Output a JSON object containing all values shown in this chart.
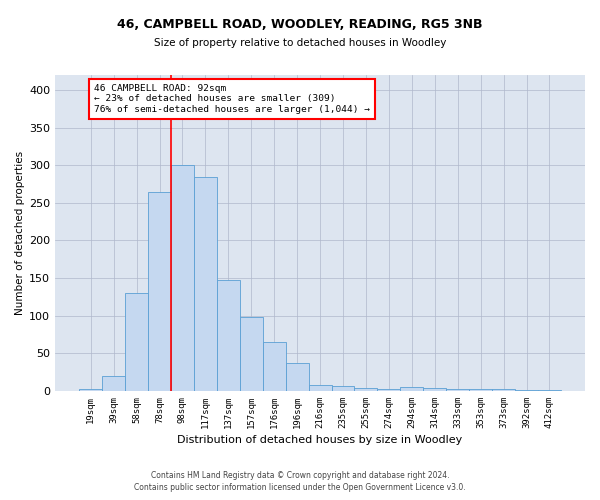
{
  "title1": "46, CAMPBELL ROAD, WOODLEY, READING, RG5 3NB",
  "title2": "Size of property relative to detached houses in Woodley",
  "xlabel": "Distribution of detached houses by size in Woodley",
  "ylabel": "Number of detached properties",
  "categories": [
    "19sqm",
    "39sqm",
    "58sqm",
    "78sqm",
    "98sqm",
    "117sqm",
    "137sqm",
    "157sqm",
    "176sqm",
    "196sqm",
    "216sqm",
    "235sqm",
    "255sqm",
    "274sqm",
    "294sqm",
    "314sqm",
    "333sqm",
    "353sqm",
    "373sqm",
    "392sqm",
    "412sqm"
  ],
  "values": [
    3,
    20,
    130,
    265,
    300,
    285,
    147,
    98,
    65,
    37,
    8,
    6,
    4,
    3,
    5,
    4,
    3,
    2,
    2,
    1,
    1
  ],
  "bar_color": "#c5d8f0",
  "bar_edge_color": "#5a9fd4",
  "grid_color": "#b0b8cc",
  "bg_color": "#dde5f0",
  "annotation_text": "46 CAMPBELL ROAD: 92sqm\n← 23% of detached houses are smaller (309)\n76% of semi-detached houses are larger (1,044) →",
  "vline_color": "red",
  "annotation_box_color": "red",
  "footer": "Contains HM Land Registry data © Crown copyright and database right 2024.\nContains public sector information licensed under the Open Government Licence v3.0.",
  "ylim": [
    0,
    420
  ],
  "yticks": [
    0,
    50,
    100,
    150,
    200,
    250,
    300,
    350,
    400
  ]
}
